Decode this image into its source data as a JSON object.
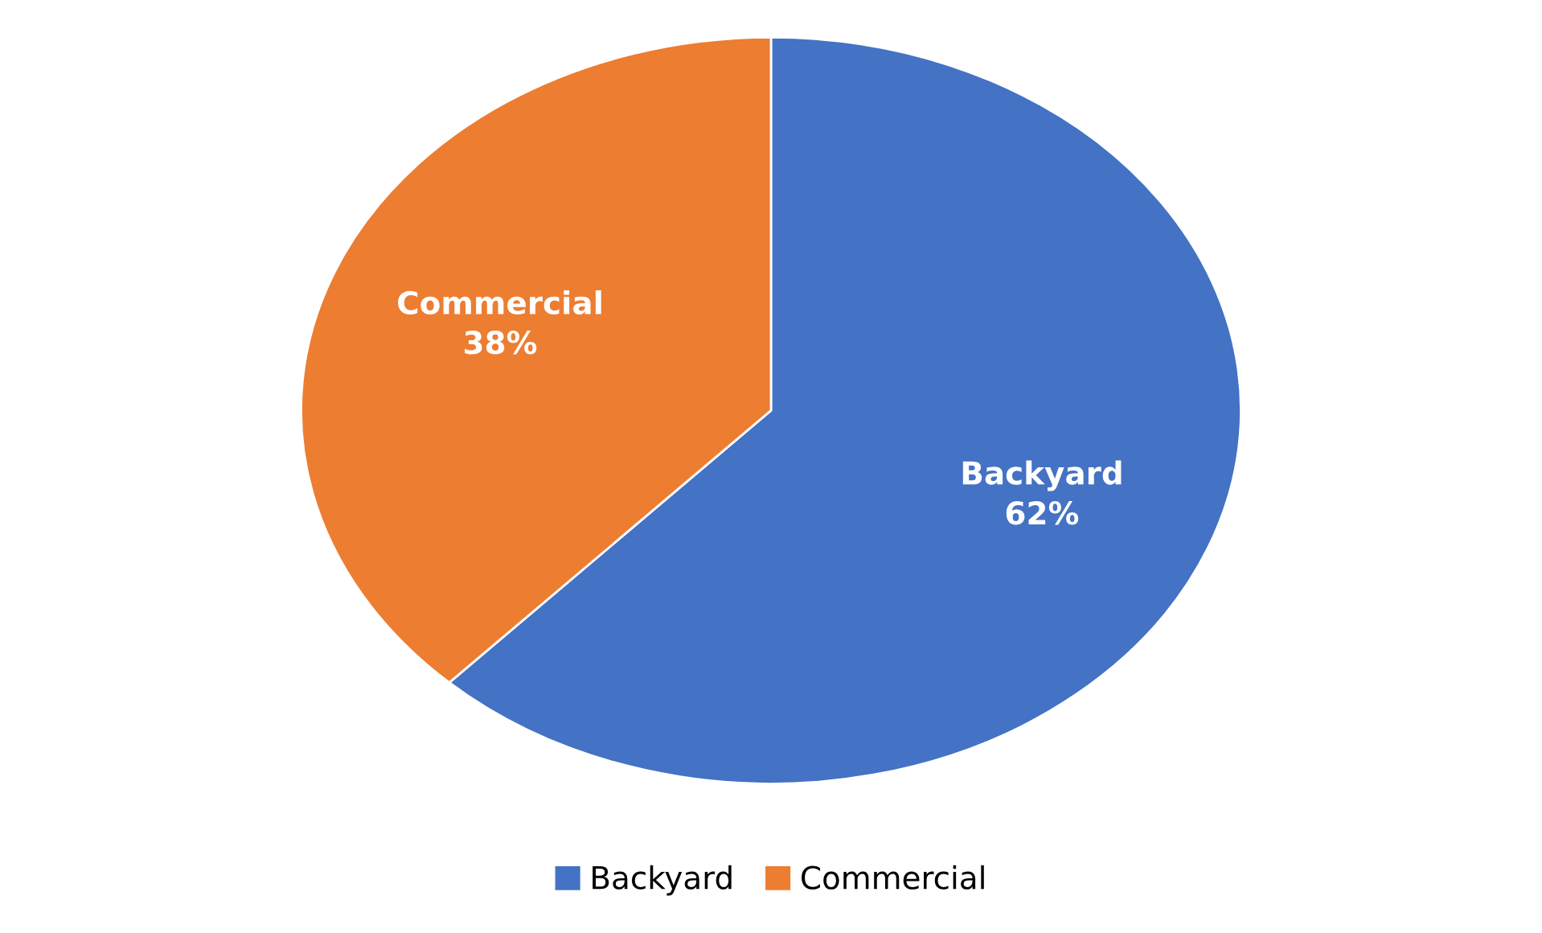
{
  "chart_data": {
    "type": "pie",
    "categories": [
      "Backyard",
      "Commercial"
    ],
    "values": [
      62,
      38
    ],
    "colors": [
      "#4472c4",
      "#ed7d31"
    ],
    "value_labels": [
      "62%",
      "38%"
    ],
    "legend": "bottom"
  }
}
